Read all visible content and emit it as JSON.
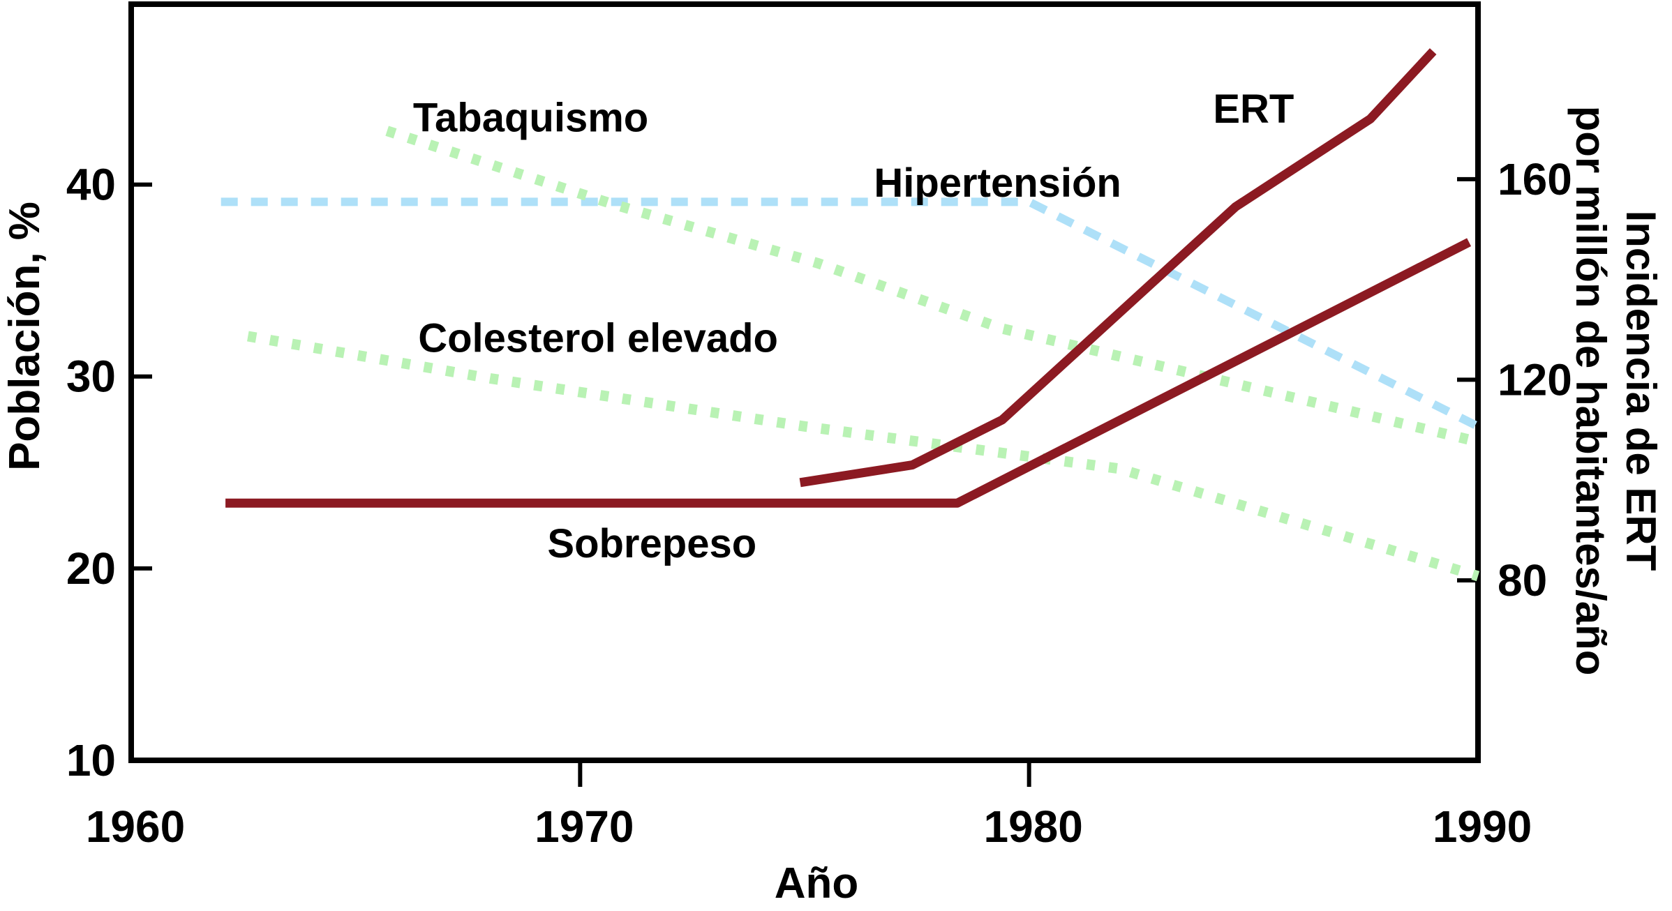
{
  "figure": {
    "background": "#ffffff",
    "text_color": "#000000"
  },
  "colors": {
    "dark_red": "#8C1A22",
    "light_blue": "#AEE0F8",
    "light_green": "#B9F2B4",
    "axis_black": "#000000"
  },
  "axes": {
    "x": {
      "title": "Año",
      "ticks": [
        1960,
        1970,
        1980,
        1990
      ],
      "range": [
        1960,
        1990
      ]
    },
    "left": {
      "title": "Población, %",
      "ticks": [
        10,
        20,
        30,
        40
      ],
      "range": [
        10,
        49.4
      ]
    },
    "right": {
      "title_line1": "Incidencia de ERT",
      "title_line2": "por millón de habitantes/año",
      "ticks": [
        80,
        120,
        160
      ],
      "range": [
        44.1,
        194.9
      ]
    }
  },
  "chart_data": {
    "type": "line",
    "title": "",
    "xlabel": "Año",
    "ylabel_left": "Población, %",
    "ylabel_right": "Incidencia de ERT por millón de habitantes/año",
    "x_range": [
      1960,
      1990
    ],
    "left_ylim": [
      10,
      49.4
    ],
    "right_ylim": [
      44.1,
      194.9
    ],
    "grid": false,
    "legend": "inline-labels",
    "series": [
      {
        "id": "hipertension",
        "name": "Hipertensión",
        "axis": "left",
        "style": "dashed",
        "color": "light_blue",
        "points": [
          [
            1962,
            39.1
          ],
          [
            1980,
            39.1
          ],
          [
            1990,
            27.4
          ]
        ],
        "label": {
          "text": "Hipertensión",
          "x": 1979.3,
          "y": 40.1
        }
      },
      {
        "id": "tabaquismo",
        "name": "Tabaquismo",
        "axis": "left",
        "style": "dotted",
        "color": "light_green",
        "points": [
          [
            1965.7,
            42.8
          ],
          [
            1970.7,
            39.0
          ],
          [
            1975.3,
            35.9
          ],
          [
            1979.4,
            32.5
          ],
          [
            1986.8,
            28.4
          ],
          [
            1990,
            26.6
          ]
        ],
        "label": {
          "text": "Tabaquismo",
          "x": 1968.9,
          "y": 43.5
        }
      },
      {
        "id": "colesterol",
        "name": "Colesterol elevado",
        "axis": "left",
        "style": "dotted",
        "color": "light_green",
        "points": [
          [
            1962.6,
            32.1
          ],
          [
            1968,
            29.9
          ],
          [
            1975,
            27.4
          ],
          [
            1982,
            25.2
          ],
          [
            1990,
            19.6
          ]
        ],
        "label": {
          "text": "Colesterol elevado",
          "x": 1970.4,
          "y": 32.0
        }
      },
      {
        "id": "sobrepeso",
        "name": "Sobrepeso",
        "axis": "left",
        "style": "solid",
        "color": "dark_red",
        "points": [
          [
            1962.1,
            23.4
          ],
          [
            1978.4,
            23.4
          ],
          [
            1989.8,
            37.0
          ]
        ],
        "label": {
          "text": "Sobrepeso",
          "x": 1971.6,
          "y": 21.3
        }
      },
      {
        "id": "ert",
        "name": "ERT",
        "axis": "right",
        "style": "solid",
        "color": "dark_red",
        "points": [
          [
            1974.9,
            99.5
          ],
          [
            1977.4,
            103
          ],
          [
            1979.4,
            112
          ],
          [
            1984.6,
            154.5
          ],
          [
            1987.6,
            172
          ],
          [
            1989,
            185.5
          ]
        ],
        "label": {
          "text": "ERT",
          "x": 1985.0,
          "y": 174
        }
      }
    ]
  }
}
